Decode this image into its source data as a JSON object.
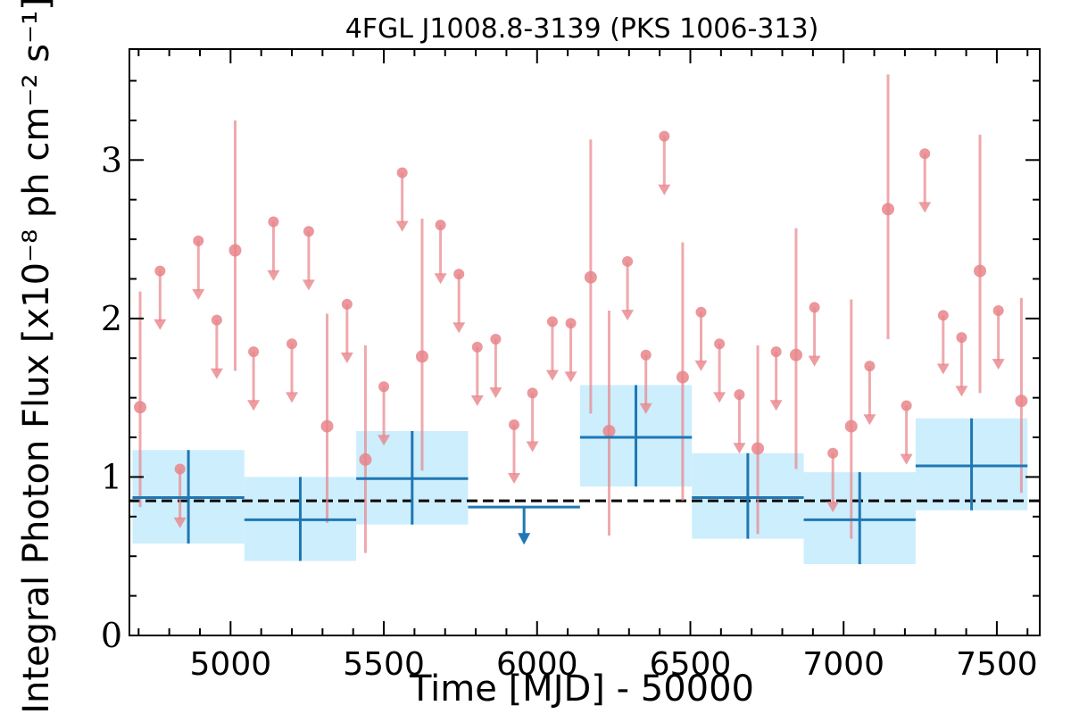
{
  "chart_data": {
    "type": "scatter",
    "title": "4FGL J1008.8-3139 (PKS 1006-313)",
    "xlabel": "Time [MJD] - 50000",
    "ylabel": "Integral Photon Flux [x10⁻⁸ ph cm⁻² s⁻¹]",
    "xlim": [
      4670,
      7640
    ],
    "ylim": [
      0,
      3.7
    ],
    "xticks": [
      5000,
      5500,
      6000,
      6500,
      7000,
      7500
    ],
    "yticks": [
      0,
      1,
      2,
      3
    ],
    "grid": false,
    "reference_line": {
      "y": 0.85,
      "style": "dashed",
      "color": "#000000"
    },
    "colors": {
      "short_bins": "#e8858a",
      "long_bins": "#1f77b4",
      "long_band": "#cdeefc"
    },
    "series": [
      {
        "bin_width_days": 60,
        "detections": [
          {
            "x": 4705,
            "y": 1.44,
            "ylo": 0.81,
            "yhi": 2.17
          },
          {
            "x": 5015,
            "y": 2.43,
            "ylo": 1.67,
            "yhi": 3.25
          },
          {
            "x": 5315,
            "y": 1.32,
            "ylo": 0.71,
            "yhi": 2.03
          },
          {
            "x": 5440,
            "y": 1.11,
            "ylo": 0.52,
            "yhi": 1.83
          },
          {
            "x": 5625,
            "y": 1.76,
            "ylo": 1.04,
            "yhi": 2.63
          },
          {
            "x": 6175,
            "y": 2.26,
            "ylo": 1.4,
            "yhi": 3.13
          },
          {
            "x": 6235,
            "y": 1.29,
            "ylo": 0.63,
            "yhi": 2.05
          },
          {
            "x": 6475,
            "y": 1.63,
            "ylo": 0.85,
            "yhi": 2.48
          },
          {
            "x": 6720,
            "y": 1.18,
            "ylo": 0.64,
            "yhi": 1.83
          },
          {
            "x": 6845,
            "y": 1.77,
            "ylo": 1.05,
            "yhi": 2.57
          },
          {
            "x": 7025,
            "y": 1.32,
            "ylo": 0.61,
            "yhi": 2.12
          },
          {
            "x": 7145,
            "y": 2.69,
            "ylo": 1.87,
            "yhi": 3.54
          },
          {
            "x": 7445,
            "y": 2.3,
            "ylo": 1.53,
            "yhi": 3.16
          },
          {
            "x": 7580,
            "y": 1.48,
            "ylo": 0.9,
            "yhi": 2.13
          }
        ],
        "upper_limits": [
          {
            "x": 4770,
            "y": 2.3
          },
          {
            "x": 4835,
            "y": 1.05
          },
          {
            "x": 4895,
            "y": 2.49
          },
          {
            "x": 4955,
            "y": 1.99
          },
          {
            "x": 5075,
            "y": 1.79
          },
          {
            "x": 5140,
            "y": 2.61
          },
          {
            "x": 5200,
            "y": 1.84
          },
          {
            "x": 5255,
            "y": 2.55
          },
          {
            "x": 5380,
            "y": 2.09
          },
          {
            "x": 5500,
            "y": 1.57
          },
          {
            "x": 5560,
            "y": 2.92
          },
          {
            "x": 5685,
            "y": 2.59
          },
          {
            "x": 5745,
            "y": 2.28
          },
          {
            "x": 5805,
            "y": 1.82
          },
          {
            "x": 5865,
            "y": 1.87
          },
          {
            "x": 5925,
            "y": 1.33
          },
          {
            "x": 5985,
            "y": 1.53
          },
          {
            "x": 6050,
            "y": 1.98
          },
          {
            "x": 6110,
            "y": 1.97
          },
          {
            "x": 6295,
            "y": 2.36
          },
          {
            "x": 6355,
            "y": 1.77
          },
          {
            "x": 6415,
            "y": 3.15
          },
          {
            "x": 6535,
            "y": 2.04
          },
          {
            "x": 6595,
            "y": 1.84
          },
          {
            "x": 6660,
            "y": 1.52
          },
          {
            "x": 6780,
            "y": 1.79
          },
          {
            "x": 6905,
            "y": 2.07
          },
          {
            "x": 6965,
            "y": 1.15
          },
          {
            "x": 7085,
            "y": 1.7
          },
          {
            "x": 7205,
            "y": 1.45
          },
          {
            "x": 7265,
            "y": 3.04
          },
          {
            "x": 7325,
            "y": 2.02
          },
          {
            "x": 7385,
            "y": 1.88
          },
          {
            "x": 7505,
            "y": 2.05
          }
        ]
      },
      {
        "bin_width_days": 365,
        "detections": [
          {
            "x0": 4680,
            "x1": 5045,
            "y": 0.87,
            "ylo": 0.58,
            "yhi": 1.17
          },
          {
            "x0": 5045,
            "x1": 5410,
            "y": 0.73,
            "ylo": 0.47,
            "yhi": 1.0
          },
          {
            "x0": 5410,
            "x1": 5775,
            "y": 0.99,
            "ylo": 0.7,
            "yhi": 1.29
          },
          {
            "x0": 6140,
            "x1": 6505,
            "y": 1.25,
            "ylo": 0.94,
            "yhi": 1.58
          },
          {
            "x0": 6505,
            "x1": 6870,
            "y": 0.87,
            "ylo": 0.61,
            "yhi": 1.15
          },
          {
            "x0": 6870,
            "x1": 7235,
            "y": 0.73,
            "ylo": 0.45,
            "yhi": 1.03
          },
          {
            "x0": 7235,
            "x1": 7600,
            "y": 1.07,
            "ylo": 0.79,
            "yhi": 1.37
          }
        ],
        "upper_limits": [
          {
            "x0": 5775,
            "x1": 6140,
            "y": 0.81
          }
        ]
      }
    ]
  }
}
